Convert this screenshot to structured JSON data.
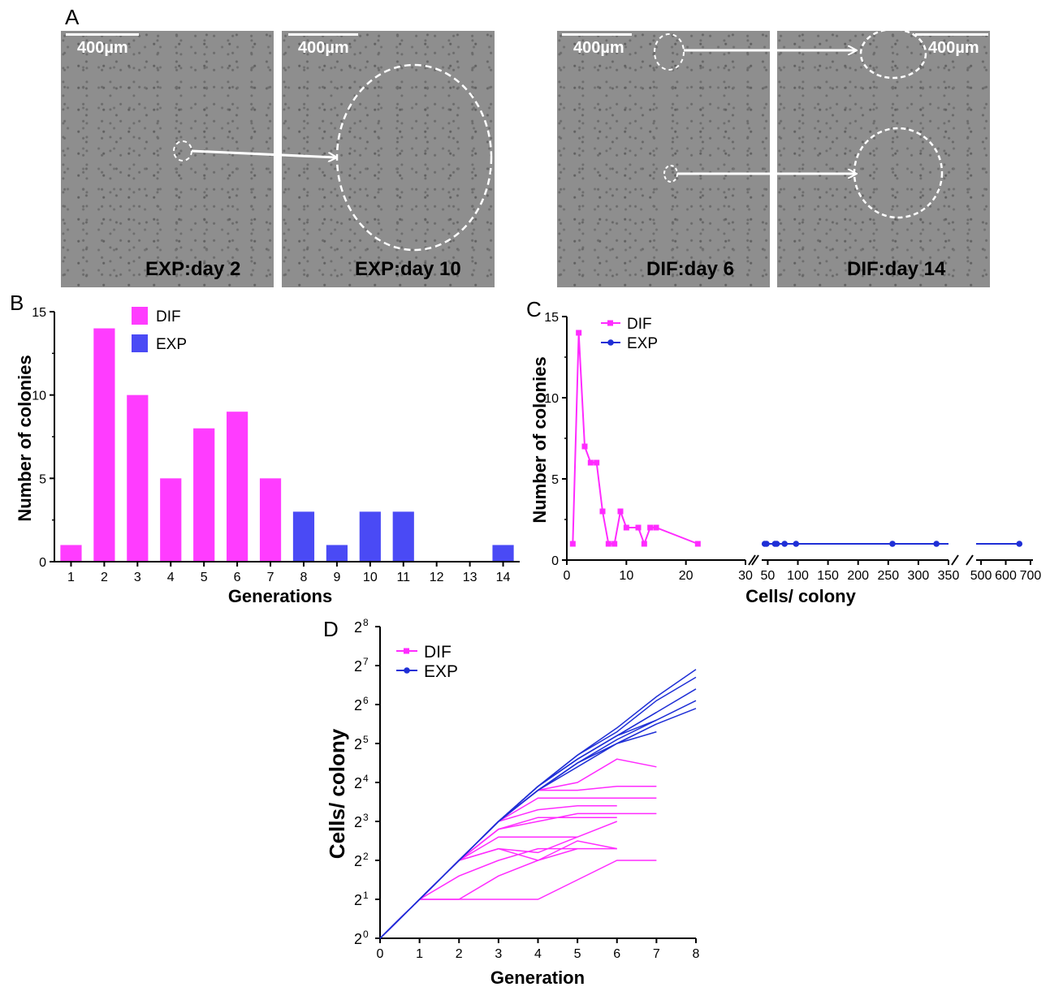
{
  "panel_a": {
    "letter": "A",
    "images": [
      {
        "scale": "400µm",
        "label": "EXP:day 2"
      },
      {
        "scale": "400µm",
        "label": "EXP:day 10"
      },
      {
        "scale": "400µm",
        "label": "DIF:day 6"
      },
      {
        "scale": "400µm",
        "label": "DIF:day 14"
      }
    ]
  },
  "colors": {
    "dif": "#ff3cff",
    "exp": "#4a4af5",
    "exp_line": "#1f2fd6",
    "dif_line": "#ff2bff"
  },
  "chart_data": [
    {
      "panel": "B",
      "type": "bar",
      "xlabel": "Generations",
      "ylabel": "Number of colonies",
      "ylim": [
        0,
        15
      ],
      "yticks": [
        "0",
        "5",
        "10",
        "15"
      ],
      "categories": [
        "1",
        "2",
        "3",
        "4",
        "5",
        "6",
        "7",
        "8",
        "9",
        "10",
        "11",
        "12",
        "13",
        "14"
      ],
      "series": [
        {
          "name": "DIF",
          "values": [
            1,
            14,
            10,
            5,
            8,
            9,
            5,
            null,
            null,
            null,
            null,
            null,
            null,
            null
          ]
        },
        {
          "name": "EXP",
          "values": [
            null,
            null,
            null,
            null,
            null,
            null,
            null,
            3,
            1,
            3,
            3,
            0,
            0,
            1
          ]
        }
      ],
      "legend": "top-left"
    },
    {
      "panel": "C",
      "type": "line",
      "xlabel": "Cells/ colony",
      "ylabel": "Number of colonies",
      "ylim": [
        0,
        15
      ],
      "yticks": [
        "0",
        "5",
        "10",
        "15"
      ],
      "x_segments": [
        {
          "range": [
            0,
            30
          ],
          "ticks": [
            "0",
            "10",
            "20",
            "30"
          ]
        },
        {
          "range": [
            40,
            350
          ],
          "ticks": [
            "50",
            "100",
            "150",
            "200",
            "250",
            "300",
            "350"
          ]
        },
        {
          "range": [
            480,
            710
          ],
          "ticks": [
            "500",
            "600",
            "700"
          ]
        }
      ],
      "series": [
        {
          "name": "DIF",
          "marker": "square",
          "points": [
            [
              1,
              1
            ],
            [
              2,
              14
            ],
            [
              3,
              7
            ],
            [
              4,
              6
            ],
            [
              5,
              6
            ],
            [
              6,
              3
            ],
            [
              7,
              1
            ],
            [
              8,
              1
            ],
            [
              9,
              3
            ],
            [
              10,
              2
            ],
            [
              12,
              2
            ],
            [
              13,
              1
            ],
            [
              14,
              2
            ],
            [
              15,
              2
            ],
            [
              22,
              1
            ]
          ]
        },
        {
          "name": "EXP",
          "marker": "circle",
          "points": [
            [
              45,
              1
            ],
            [
              48,
              1
            ],
            [
              62,
              1
            ],
            [
              65,
              1
            ],
            [
              78,
              1
            ],
            [
              97,
              1
            ],
            [
              257,
              1
            ],
            [
              330,
              1
            ],
            [
              655,
              1
            ]
          ]
        }
      ],
      "legend": "top-left"
    },
    {
      "panel": "D",
      "type": "line",
      "xlabel": "Generation",
      "ylabel": "Cells/ colony",
      "xlim": [
        0,
        8
      ],
      "xticks": [
        "0",
        "1",
        "2",
        "3",
        "4",
        "5",
        "6",
        "7",
        "8"
      ],
      "yscale": "log2",
      "ylim_exponents": [
        0,
        8
      ],
      "ytick_base": "2",
      "ytick_exponents": [
        "0",
        "1",
        "2",
        "3",
        "4",
        "5",
        "6",
        "7",
        "8"
      ],
      "series": [
        {
          "name": "DIF",
          "lines": [
            [
              [
                0,
                0
              ],
              [
                1,
                1
              ],
              [
                2,
                1
              ],
              [
                3,
                1
              ],
              [
                4,
                1
              ],
              [
                5,
                1.5
              ],
              [
                6,
                2
              ],
              [
                7,
                2
              ]
            ],
            [
              [
                0,
                0
              ],
              [
                1,
                1
              ],
              [
                2,
                1
              ],
              [
                3,
                1.6
              ],
              [
                4,
                2
              ],
              [
                5,
                2.3
              ],
              [
                6,
                2.3
              ]
            ],
            [
              [
                0,
                0
              ],
              [
                1,
                1
              ],
              [
                2,
                2
              ],
              [
                3,
                2.3
              ],
              [
                4,
                2
              ],
              [
                5,
                2.5
              ],
              [
                6,
                2.3
              ]
            ],
            [
              [
                0,
                0
              ],
              [
                1,
                1
              ],
              [
                2,
                1.6
              ],
              [
                3,
                2
              ],
              [
                4,
                2.3
              ],
              [
                5,
                2.3
              ]
            ],
            [
              [
                0,
                0
              ],
              [
                1,
                1
              ],
              [
                2,
                2
              ],
              [
                3,
                2.6
              ],
              [
                4,
                2.6
              ],
              [
                5,
                2.6
              ]
            ],
            [
              [
                0,
                0
              ],
              [
                1,
                1
              ],
              [
                2,
                2
              ],
              [
                3,
                2.3
              ],
              [
                4,
                2.2
              ],
              [
                5,
                2.6
              ],
              [
                6,
                3
              ]
            ],
            [
              [
                0,
                0
              ],
              [
                1,
                1
              ],
              [
                2,
                2
              ],
              [
                3,
                2.8
              ],
              [
                4,
                3
              ],
              [
                5,
                3.2
              ],
              [
                6,
                3.2
              ],
              [
                7,
                3.2
              ]
            ],
            [
              [
                0,
                0
              ],
              [
                1,
                1
              ],
              [
                2,
                2
              ],
              [
                3,
                3
              ],
              [
                4,
                3.3
              ],
              [
                5,
                3.4
              ],
              [
                6,
                3.4
              ]
            ],
            [
              [
                0,
                0
              ],
              [
                1,
                1
              ],
              [
                2,
                2
              ],
              [
                3,
                3
              ],
              [
                4,
                3.6
              ],
              [
                5,
                3.6
              ],
              [
                6,
                3.6
              ],
              [
                7,
                3.6
              ]
            ],
            [
              [
                0,
                0
              ],
              [
                1,
                1
              ],
              [
                2,
                2
              ],
              [
                3,
                3
              ],
              [
                4,
                3.8
              ],
              [
                5,
                3.8
              ],
              [
                6,
                3.9
              ],
              [
                7,
                3.9
              ]
            ],
            [
              [
                0,
                0
              ],
              [
                1,
                1
              ],
              [
                2,
                2
              ],
              [
                3,
                2.8
              ],
              [
                4,
                3.1
              ],
              [
                5,
                3.1
              ],
              [
                6,
                3.1
              ]
            ],
            [
              [
                0,
                0
              ],
              [
                1,
                1
              ],
              [
                2,
                2
              ],
              [
                3,
                3
              ],
              [
                4,
                3.8
              ],
              [
                5,
                4
              ],
              [
                6,
                4.6
              ],
              [
                7,
                4.4
              ]
            ]
          ]
        },
        {
          "name": "EXP",
          "lines": [
            [
              [
                0,
                0
              ],
              [
                1,
                1
              ],
              [
                2,
                2
              ],
              [
                3,
                3
              ],
              [
                4,
                3.9
              ],
              [
                5,
                4.7
              ],
              [
                6,
                5.3
              ],
              [
                7,
                6.1
              ],
              [
                8,
                6.7
              ]
            ],
            [
              [
                0,
                0
              ],
              [
                1,
                1
              ],
              [
                2,
                2
              ],
              [
                3,
                3
              ],
              [
                4,
                3.9
              ],
              [
                5,
                4.7
              ],
              [
                6,
                5.4
              ],
              [
                7,
                6.2
              ],
              [
                8,
                6.9
              ]
            ],
            [
              [
                0,
                0
              ],
              [
                1,
                1
              ],
              [
                2,
                2
              ],
              [
                3,
                3
              ],
              [
                4,
                3.9
              ],
              [
                5,
                4.6
              ],
              [
                6,
                5.2
              ],
              [
                7,
                5.8
              ],
              [
                8,
                6.4
              ]
            ],
            [
              [
                0,
                0
              ],
              [
                1,
                1
              ],
              [
                2,
                2
              ],
              [
                3,
                3
              ],
              [
                4,
                3.8
              ],
              [
                5,
                4.5
              ],
              [
                6,
                5.1
              ],
              [
                7,
                5.6
              ],
              [
                8,
                6.1
              ]
            ],
            [
              [
                0,
                0
              ],
              [
                1,
                1
              ],
              [
                2,
                2
              ],
              [
                3,
                3
              ],
              [
                4,
                3.8
              ],
              [
                5,
                4.5
              ],
              [
                6,
                5.0
              ],
              [
                7,
                5.5
              ],
              [
                8,
                5.9
              ]
            ],
            [
              [
                0,
                0
              ],
              [
                1,
                1
              ],
              [
                2,
                2
              ],
              [
                3,
                3
              ],
              [
                4,
                3.9
              ],
              [
                5,
                4.6
              ],
              [
                6,
                5.2
              ],
              [
                7,
                5.6
              ]
            ],
            [
              [
                0,
                0
              ],
              [
                1,
                1
              ],
              [
                2,
                2
              ],
              [
                3,
                3
              ],
              [
                4,
                3.8
              ],
              [
                5,
                4.4
              ],
              [
                6,
                5.0
              ],
              [
                7,
                5.3
              ]
            ],
            [
              [
                0,
                0
              ],
              [
                1,
                1
              ],
              [
                2,
                2
              ],
              [
                3,
                3
              ],
              [
                4,
                3.9
              ],
              [
                5,
                4.6
              ],
              [
                6,
                5.2
              ],
              [
                7,
                5.8
              ]
            ],
            [
              [
                0,
                0
              ],
              [
                1,
                1
              ],
              [
                2,
                2
              ],
              [
                3,
                3
              ],
              [
                4,
                3.8
              ],
              [
                5,
                4.5
              ],
              [
                6,
                5.0
              ],
              [
                7,
                5.5
              ]
            ]
          ]
        }
      ],
      "legend": "top-left"
    }
  ]
}
